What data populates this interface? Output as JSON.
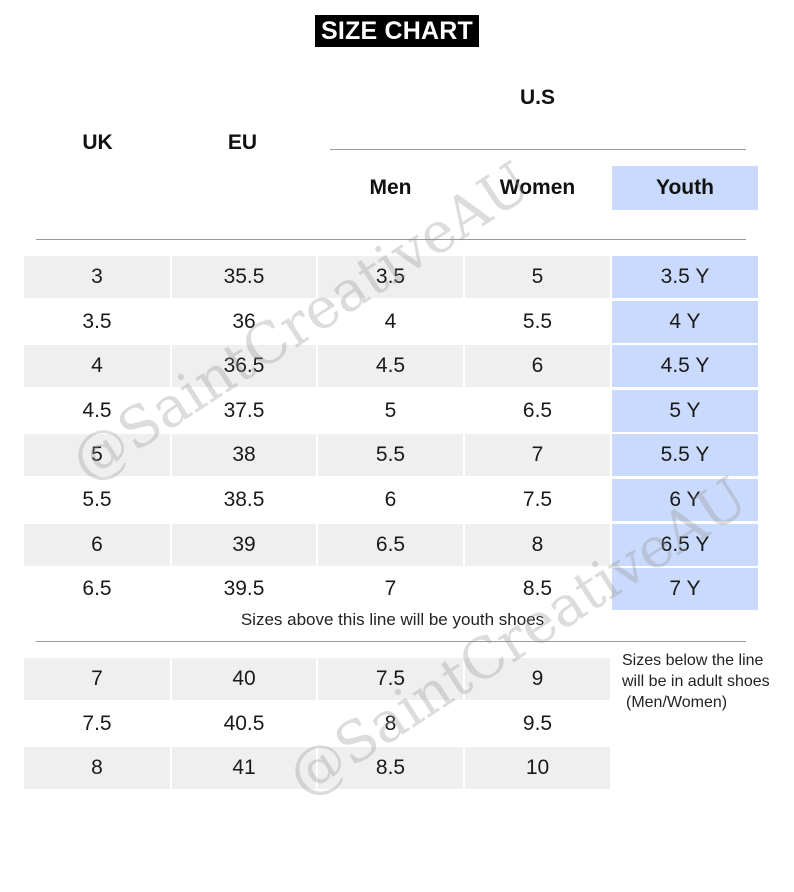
{
  "title": "SIZE CHART",
  "headers": {
    "us": "U.S",
    "uk": "UK",
    "eu": "EU",
    "men": "Men",
    "women": "Women",
    "youth": "Youth"
  },
  "youth_rows": [
    {
      "uk": "3",
      "eu": "35.5",
      "men": "3.5",
      "women": "5",
      "youth": "3.5 Y"
    },
    {
      "uk": "3.5",
      "eu": "36",
      "men": "4",
      "women": "5.5",
      "youth": "4 Y"
    },
    {
      "uk": "4",
      "eu": "36.5",
      "men": "4.5",
      "women": "6",
      "youth": "4.5 Y"
    },
    {
      "uk": "4.5",
      "eu": "37.5",
      "men": "5",
      "women": "6.5",
      "youth": "5 Y"
    },
    {
      "uk": "5",
      "eu": "38",
      "men": "5.5",
      "women": "7",
      "youth": "5.5 Y"
    },
    {
      "uk": "5.5",
      "eu": "38.5",
      "men": "6",
      "women": "7.5",
      "youth": "6 Y"
    },
    {
      "uk": "6",
      "eu": "39",
      "men": "6.5",
      "women": "8",
      "youth": "6.5 Y"
    },
    {
      "uk": "6.5",
      "eu": "39.5",
      "men": "7",
      "women": "8.5",
      "youth": "7 Y"
    }
  ],
  "youth_note": "Sizes above this line will be youth shoes",
  "adult_rows": [
    {
      "uk": "7",
      "eu": "40",
      "men": "7.5",
      "women": "9"
    },
    {
      "uk": "7.5",
      "eu": "40.5",
      "men": "8",
      "women": "9.5"
    },
    {
      "uk": "8",
      "eu": "41",
      "men": "8.5",
      "women": "10"
    }
  ],
  "adult_note": [
    "Sizes below the line",
    "will be in adult shoes",
    "(Men/Women)"
  ],
  "watermark": "@SaintCreativeAU",
  "colors": {
    "title_bg": "#000000",
    "youth_highlight": "#c9dafc",
    "row_shade": "#efefef",
    "divider": "#9a9a9a"
  }
}
